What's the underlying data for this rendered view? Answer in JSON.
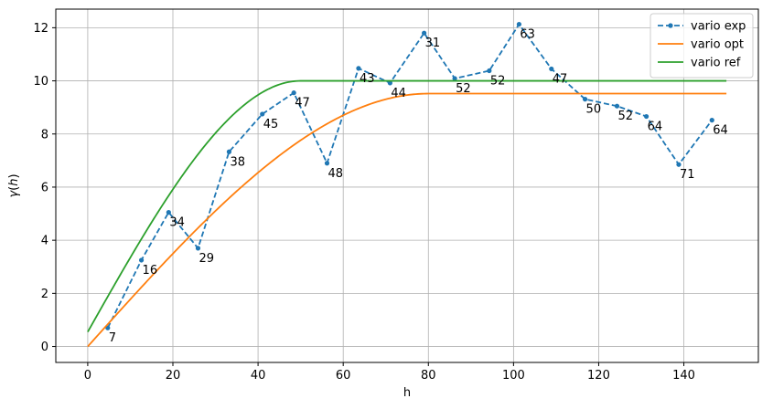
{
  "chart_data": {
    "type": "line",
    "xlabel": "h",
    "ylabel": "γ(h)",
    "xlim": [
      -7.5,
      157.5
    ],
    "ylim": [
      -0.6,
      12.7
    ],
    "xticks": [
      0,
      20,
      40,
      60,
      80,
      100,
      120,
      140
    ],
    "yticks": [
      0,
      2,
      4,
      6,
      8,
      10,
      12
    ],
    "grid": true,
    "legend_position": "top-right",
    "series": [
      {
        "name": "vario exp",
        "style": "dashed-markers",
        "color": "#1f77b4",
        "x": [
          4.7,
          12.6,
          19.0,
          25.9,
          33.2,
          41.0,
          48.4,
          56.2,
          63.6,
          71.0,
          79.0,
          86.2,
          94.3,
          101.3,
          108.9,
          116.8,
          124.3,
          131.2,
          138.8,
          146.6
        ],
        "y": [
          0.7,
          3.25,
          5.05,
          3.7,
          7.33,
          8.75,
          9.55,
          6.9,
          10.47,
          9.92,
          11.8,
          10.09,
          10.38,
          12.13,
          10.45,
          9.31,
          9.05,
          8.66,
          6.85,
          8.52
        ],
        "labels": [
          "7",
          "16",
          "34",
          "29",
          "38",
          "45",
          "47",
          "48",
          "43",
          "44",
          "31",
          "52",
          "52",
          "63",
          "47",
          "50",
          "52",
          "64",
          "71",
          "64"
        ]
      },
      {
        "name": "vario opt",
        "style": "solid",
        "color": "#ff7f0e",
        "model": "spherical",
        "nugget": 0.0,
        "sill": 9.52,
        "range": 80,
        "x_range": [
          0,
          150
        ]
      },
      {
        "name": "vario ref",
        "style": "solid",
        "color": "#2ca02c",
        "model": "spherical",
        "nugget": 0.55,
        "sill": 10.0,
        "range": 50,
        "x_range": [
          0,
          150
        ]
      }
    ]
  }
}
